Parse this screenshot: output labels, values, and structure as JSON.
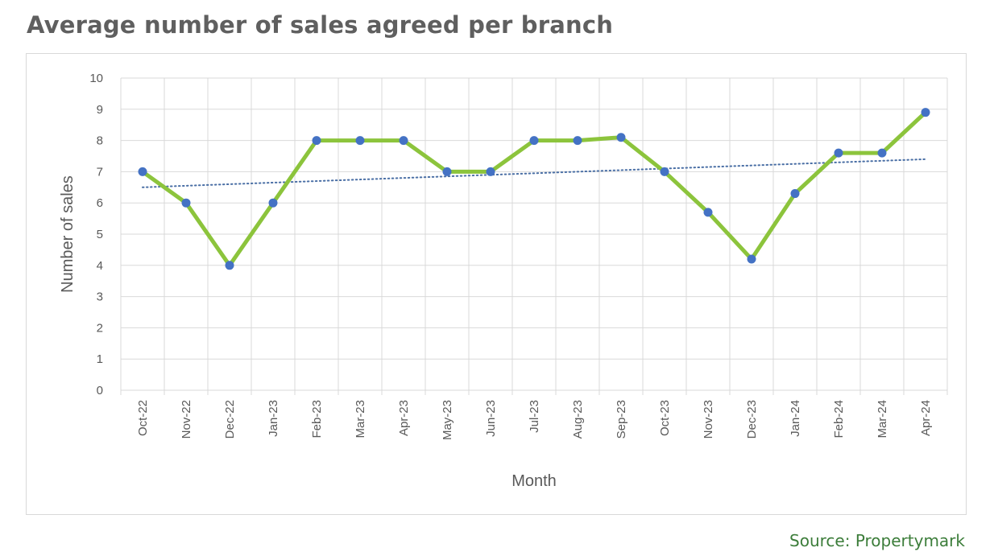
{
  "header": {
    "title": "Average number of sales agreed per branch"
  },
  "footer": {
    "source": "Source: Propertymark"
  },
  "colors": {
    "line": "#8cc43c",
    "marker": "#4472c4",
    "trendline": "#4a6fa5",
    "grid": "#d9d9d9",
    "title": "#5f5f5f",
    "source": "#3c7d3a"
  },
  "chart_data": {
    "type": "line",
    "title": "",
    "xlabel": "Month",
    "ylabel": "Number of sales",
    "ylim": [
      0,
      10
    ],
    "yticks": [
      0,
      1,
      2,
      3,
      4,
      5,
      6,
      7,
      8,
      9,
      10
    ],
    "grid": true,
    "legend": "none",
    "categories": [
      "Oct-22",
      "Nov-22",
      "Dec-22",
      "Jan-23",
      "Feb-23",
      "Mar-23",
      "Apr-23",
      "May-23",
      "Jun-23",
      "Jul-23",
      "Aug-23",
      "Sep-23",
      "Oct-23",
      "Nov-23",
      "Dec-23",
      "Jan-24",
      "Feb-24",
      "Mar-24",
      "Apr-24"
    ],
    "series": [
      {
        "values": [
          7,
          6,
          4,
          6,
          8,
          8,
          8,
          7,
          7,
          8,
          8,
          8.1,
          7,
          5.7,
          4.2,
          6.3,
          7.6,
          7.6,
          8.9
        ]
      }
    ],
    "trendline": {
      "type": "linear",
      "style": "dotted",
      "start": 6.5,
      "end": 7.4
    }
  }
}
